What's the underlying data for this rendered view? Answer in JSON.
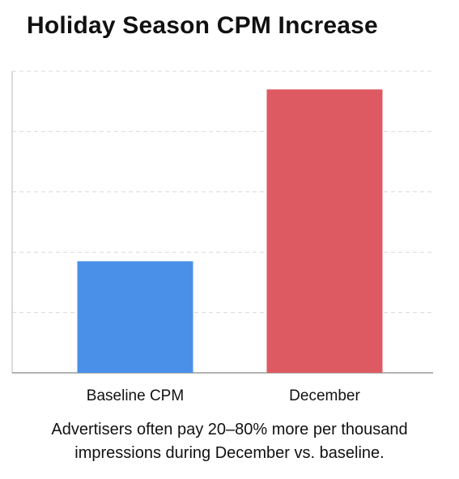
{
  "chart_data": {
    "type": "bar",
    "title": "Holiday Season CPM Increase",
    "categories": [
      "Baseline CPM",
      "December"
    ],
    "values": [
      37,
      94
    ],
    "ylim": [
      0,
      100
    ],
    "grid": true,
    "colors": [
      "#4a90e8",
      "#de5a62"
    ],
    "xlabel": "",
    "ylabel": ""
  },
  "caption": {
    "line1": "Advertisers often pay 20–80% more per thousand",
    "line2": "impressions during December vs. baseline."
  }
}
